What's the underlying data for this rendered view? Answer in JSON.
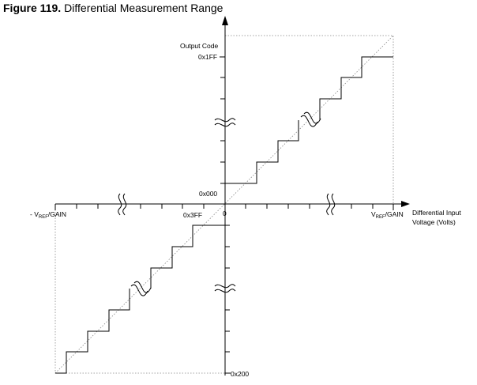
{
  "title": {
    "figure_number": "Figure 119.",
    "text": "Differential Measurement Range"
  },
  "labels": {
    "output_code": "Output Code",
    "code_max": "0x1FF",
    "code_zero": "0x000",
    "code_neg_one": "0x3FF",
    "code_min": "0x200",
    "origin": "0",
    "neg_vref_prefix": "- V",
    "vref_prefix": "V",
    "ref_sub": "REF",
    "gain_suffix": "/GAIN",
    "x_axis_line1": "Differential Input",
    "x_axis_line2": "Voltage (Volts)"
  }
}
